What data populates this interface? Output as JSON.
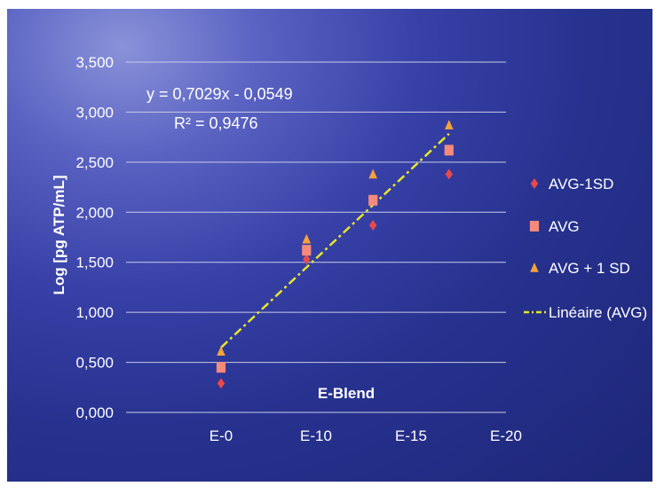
{
  "chart_data": {
    "type": "scatter",
    "ylabel": "Log [pg ATP/mL]",
    "xlabel": "E-Blend",
    "ylim": [
      0,
      3.5
    ],
    "yticks": [
      "0,000",
      "0,500",
      "1,000",
      "1,500",
      "2,000",
      "2,500",
      "3,000",
      "3,500"
    ],
    "ytick_values": [
      0,
      0.5,
      1.0,
      1.5,
      2.0,
      2.5,
      3.0,
      3.5
    ],
    "xticks": [
      "E-0",
      "E-10",
      "E-15",
      "E-20"
    ],
    "grid": true,
    "legend_position": "right",
    "series": [
      {
        "name": "AVG-1SD",
        "marker": "diamond",
        "color": "#e8494b",
        "x": [
          1,
          1.9,
          2.6,
          3.4
        ],
        "y": [
          0.29,
          1.53,
          1.87,
          2.38
        ]
      },
      {
        "name": "AVG",
        "marker": "square",
        "color": "#f58a7b",
        "x": [
          1,
          1.9,
          2.6,
          3.4
        ],
        "y": [
          0.45,
          1.62,
          2.12,
          2.62
        ]
      },
      {
        "name": "AVG + 1 SD",
        "marker": "triangle",
        "color": "#f5a23a",
        "x": [
          1,
          1.9,
          2.6,
          3.4
        ],
        "y": [
          0.61,
          1.73,
          2.38,
          2.87
        ]
      }
    ],
    "trendline": {
      "name": "Linéaire (AVG)",
      "color": "#e6e62a",
      "x": [
        1,
        3.4
      ],
      "y": [
        0.648,
        2.784
      ]
    },
    "equation": "y = 0,7029x - 0,0549",
    "r_squared": "R² = 0,9476"
  }
}
